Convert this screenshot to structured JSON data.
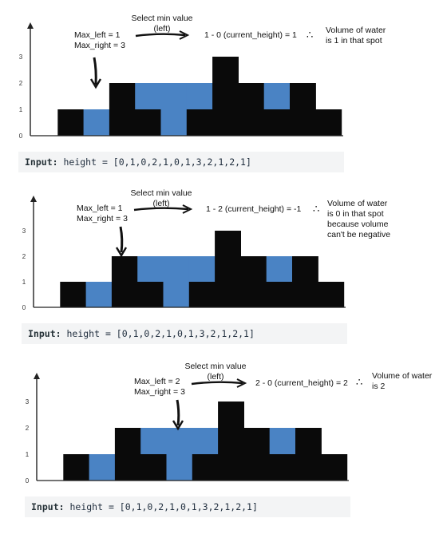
{
  "chart_data": [
    {
      "type": "bar",
      "heights": [
        0,
        1,
        0,
        2,
        1,
        0,
        1,
        3,
        2,
        1,
        2,
        1
      ],
      "water": [
        0,
        0,
        1,
        0,
        1,
        2,
        1,
        0,
        0,
        1,
        0,
        0
      ],
      "yticks": [
        0,
        1,
        2,
        3
      ],
      "ylim": [
        0,
        3
      ],
      "bar_color": "#0a0a0a",
      "water_color": "#4a83c4"
    },
    {
      "type": "bar",
      "heights": [
        0,
        1,
        0,
        2,
        1,
        0,
        1,
        3,
        2,
        1,
        2,
        1
      ],
      "water": [
        0,
        0,
        1,
        0,
        1,
        2,
        1,
        0,
        0,
        1,
        0,
        0
      ],
      "yticks": [
        0,
        1,
        2,
        3
      ],
      "ylim": [
        0,
        3
      ],
      "bar_color": "#0a0a0a",
      "water_color": "#4a83c4"
    },
    {
      "type": "bar",
      "heights": [
        0,
        1,
        0,
        2,
        1,
        0,
        1,
        3,
        2,
        1,
        2,
        1
      ],
      "water": [
        0,
        0,
        1,
        0,
        1,
        2,
        1,
        0,
        0,
        1,
        0,
        0
      ],
      "yticks": [
        0,
        1,
        2,
        3
      ],
      "ylim": [
        0,
        3
      ],
      "bar_color": "#0a0a0a",
      "water_color": "#4a83c4"
    }
  ],
  "panels": [
    {
      "select_label": [
        "Select min value",
        "(left)"
      ],
      "max_left": "Max_left = 1",
      "max_right": "Max_right = 3",
      "equation": "1 - 0 (current_height) = 1",
      "therefore": "∴",
      "result": [
        "Volume of water",
        "is 1 in that spot"
      ],
      "code_keyword": "Input:",
      "code_text": "height = [0,1,0,2,1,0,1,3,2,1,2,1]"
    },
    {
      "select_label": [
        "Select min value",
        "(left)"
      ],
      "max_left": "Max_left = 1",
      "max_right": "Max_right = 3",
      "equation": "1 - 2 (current_height) = -1",
      "therefore": "∴",
      "result": [
        "Volume of water",
        "is 0 in that spot",
        "because volume",
        "can't be negative"
      ],
      "code_keyword": "Input:",
      "code_text": "height = [0,1,0,2,1,0,1,3,2,1,2,1]"
    },
    {
      "select_label": [
        "Select min value",
        "(left)"
      ],
      "max_left": "Max_left = 2",
      "max_right": "Max_right = 3",
      "equation": "2 - 0 (current_height) = 2",
      "therefore": "∴",
      "result": [
        "Volume of water",
        "is 2"
      ],
      "code_keyword": "Input:",
      "code_text": "height = [0,1,0,2,1,0,1,3,2,1,2,1]"
    }
  ]
}
